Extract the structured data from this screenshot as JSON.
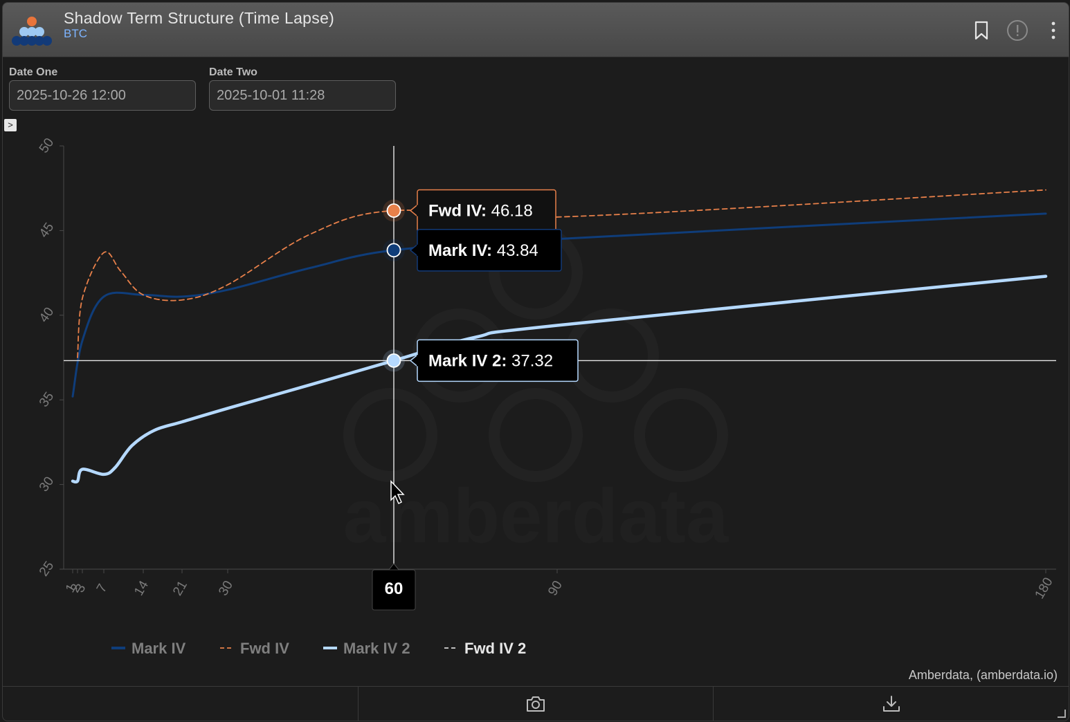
{
  "header": {
    "title": "Shadow Term Structure (Time Lapse)",
    "subtitle": "BTC",
    "icons": [
      "bookmark-icon",
      "info-icon",
      "more-vertical-icon"
    ]
  },
  "controls": {
    "date_one": {
      "label": "Date One",
      "value": "2025-10-26 12:00"
    },
    "date_two": {
      "label": "Date Two",
      "value": "2025-10-01 11:28"
    },
    "sidebar_toggle": ">"
  },
  "chart_data": {
    "type": "line",
    "xlabel": "",
    "ylabel": "",
    "xlim": [
      0,
      180
    ],
    "ylim": [
      25,
      50
    ],
    "y_ticks": [
      25,
      30,
      35,
      40,
      45,
      50
    ],
    "x_ticks": [
      1,
      2,
      3,
      7,
      14,
      21,
      30,
      60,
      90,
      180
    ],
    "x_tick_labels": [
      "1",
      "2",
      "3",
      "7",
      "14",
      "21",
      "30",
      "60",
      "90",
      "180"
    ],
    "watermark": "amberdata",
    "legend_position": "bottom-left",
    "series": [
      {
        "name": "Mark IV",
        "color": "#0f3d7a",
        "style": "solid",
        "x": [
          1,
          3,
          7,
          14,
          21,
          30,
          45,
          60,
          90,
          180
        ],
        "y": [
          35.2,
          38.5,
          41.1,
          41.2,
          41.1,
          41.5,
          42.8,
          43.84,
          44.5,
          46.0
        ]
      },
      {
        "name": "Fwd IV",
        "color": "#e8804a",
        "style": "dashed",
        "x": [
          2,
          3,
          7,
          10,
          14,
          21,
          30,
          45,
          60,
          90,
          180
        ],
        "y": [
          37.5,
          41.0,
          43.7,
          42.6,
          41.2,
          40.9,
          41.8,
          44.8,
          46.18,
          45.8,
          47.4
        ]
      },
      {
        "name": "Mark IV 2",
        "color": "#b5d9ff",
        "style": "solid",
        "x": [
          1,
          2,
          3,
          7,
          9,
          12,
          16,
          21,
          30,
          45,
          60,
          75,
          90,
          180
        ],
        "y": [
          30.2,
          30.2,
          30.9,
          30.6,
          31.0,
          32.3,
          33.2,
          33.7,
          34.5,
          35.9,
          37.32,
          38.7,
          39.4,
          42.3
        ]
      },
      {
        "name": "Fwd IV 2",
        "color": "#d8d8d8",
        "style": "dashed",
        "x": [],
        "y": []
      }
    ],
    "crosshair": {
      "x": 60,
      "y": 37.32,
      "x_label": "60"
    },
    "tooltips": [
      {
        "series": "Fwd IV",
        "label": "Fwd IV:",
        "value": "46.18"
      },
      {
        "series": "Mark IV",
        "label": "Mark IV:",
        "value": "43.84"
      },
      {
        "series": "Mark IV 2",
        "label": "Mark IV 2:",
        "value": "37.32"
      }
    ]
  },
  "footer": {
    "credit": "Amberdata, (amberdata.io)"
  },
  "toolbar": {
    "icons": [
      "camera-icon",
      "download-icon"
    ]
  }
}
